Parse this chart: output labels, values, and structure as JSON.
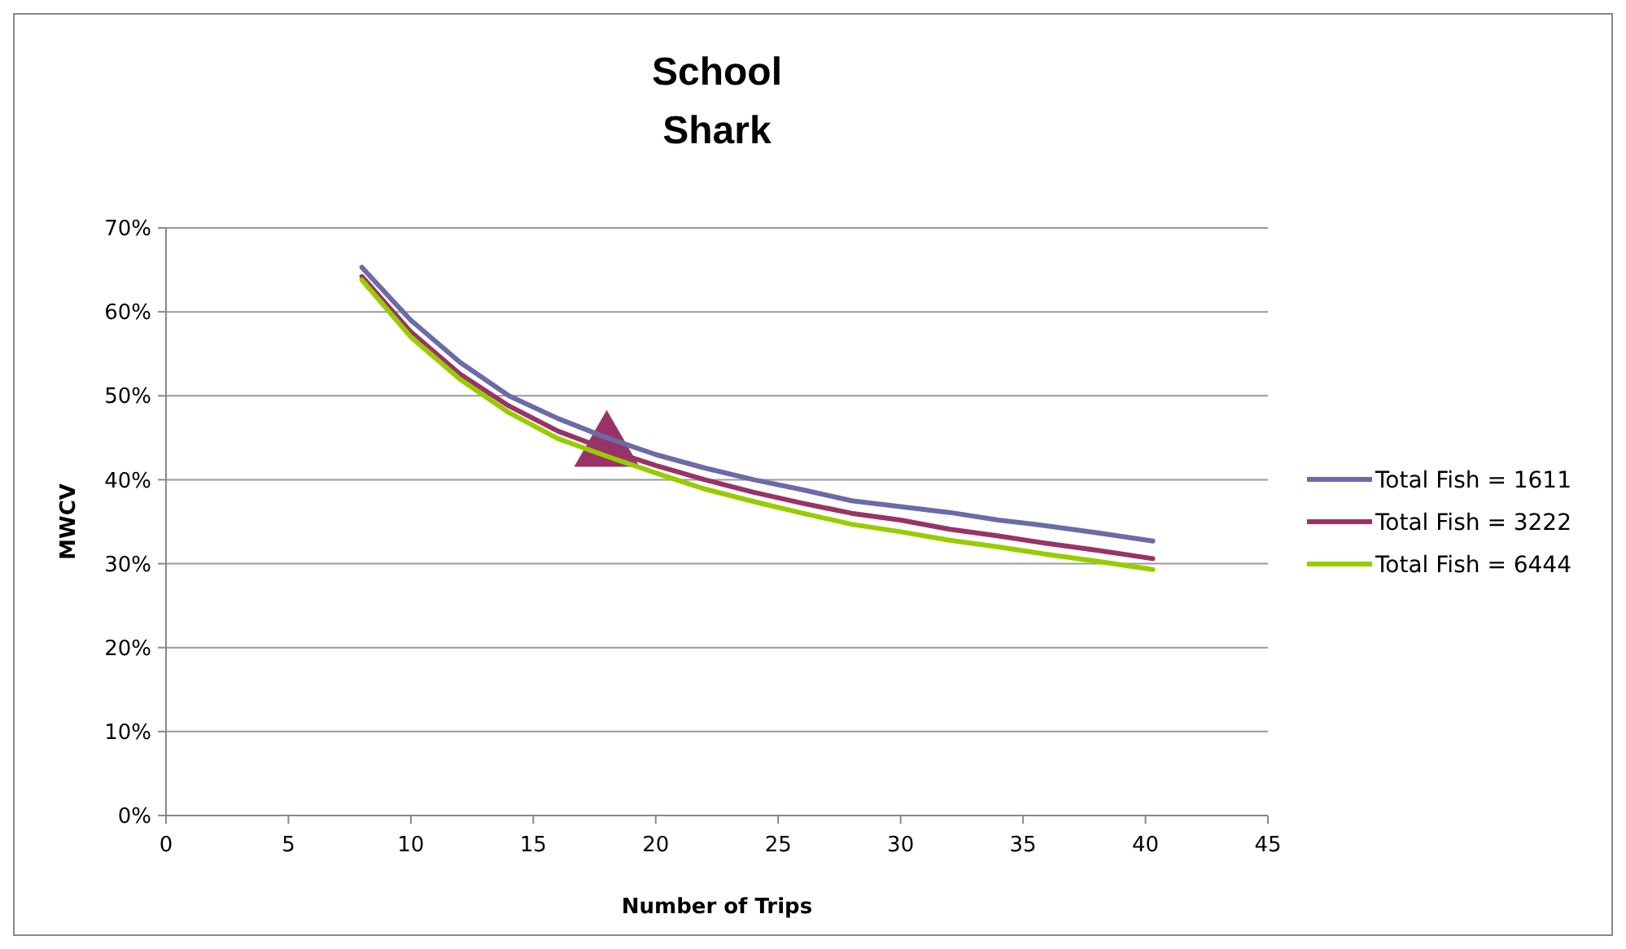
{
  "chart_data": {
    "type": "line",
    "title": "School\nShark",
    "xlabel": "Number of Trips",
    "ylabel": "MWCV",
    "x": [
      8,
      10,
      12,
      14,
      16,
      18,
      20,
      22,
      24,
      26,
      28,
      30,
      32,
      34,
      36,
      38,
      40.3
    ],
    "series": [
      {
        "name": "Total Fish = 1611",
        "color": "#6b6ba8",
        "values": [
          65.3,
          59,
          54,
          50,
          47.3,
          45,
          43,
          41.4,
          40,
          38.8,
          37.5,
          36.8,
          36.1,
          35.2,
          34.5,
          33.7,
          32.7
        ]
      },
      {
        "name": "Total Fish = 3222",
        "color": "#993366",
        "values": [
          64.2,
          57.6,
          52.6,
          48.8,
          45.8,
          43.6,
          41.7,
          40,
          38.5,
          37.2,
          36,
          35.2,
          34.1,
          33.3,
          32.4,
          31.6,
          30.6
        ]
      },
      {
        "name": "Total Fish = 6444",
        "color": "#99cc00",
        "values": [
          63.8,
          57,
          52,
          48,
          44.9,
          42.8,
          40.8,
          38.9,
          37.4,
          36,
          34.7,
          33.8,
          32.8,
          32,
          31.1,
          30.3,
          29.3
        ]
      },
      {
        "type": "scatter",
        "color": "#993366",
        "marker": "triangle",
        "x": [
          18
        ],
        "values": [
          43.8
        ]
      }
    ],
    "xlim": [
      0,
      45
    ],
    "xticks": [
      0,
      5,
      10,
      15,
      20,
      25,
      30,
      35,
      40,
      45
    ],
    "ylim": [
      0,
      70
    ],
    "yticks": [
      {
        "value": 0,
        "label": "0%"
      },
      {
        "value": 10,
        "label": "10%"
      },
      {
        "value": 20,
        "label": "20%"
      },
      {
        "value": 30,
        "label": "30%"
      },
      {
        "value": 40,
        "label": "40%"
      },
      {
        "value": 50,
        "label": "50%"
      },
      {
        "value": 60,
        "label": "60%"
      },
      {
        "value": 70,
        "label": "70%"
      }
    ],
    "grid": "y",
    "legend": "right",
    "marker": "none"
  }
}
